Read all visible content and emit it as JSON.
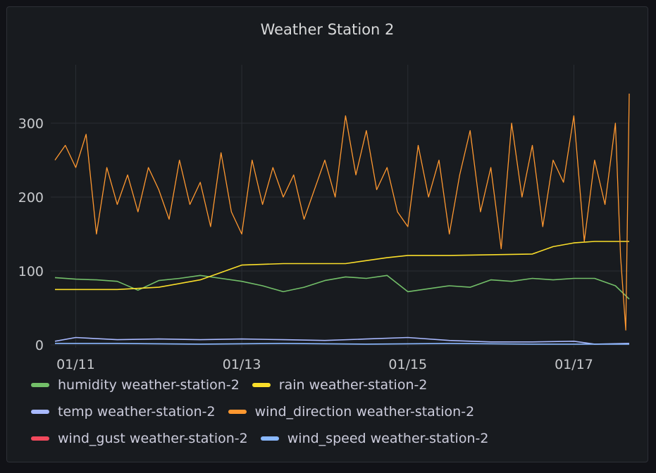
{
  "panel": {
    "title": "Weather Station 2"
  },
  "chart_data": {
    "type": "line",
    "title": "Weather Station 2",
    "xlabel": "",
    "ylabel": "",
    "x_range": [
      "2023-01-10 18:00",
      "2023-01-17 16:00"
    ],
    "x_ticks": [
      "01/11",
      "01/13",
      "01/15",
      "01/17"
    ],
    "y_ticks": [
      0,
      100,
      200,
      300
    ],
    "ylim": [
      0,
      380
    ],
    "grid": true,
    "legend_position": "bottom",
    "series": [
      {
        "name": "humidity weather-station-2",
        "color": "#73bf69",
        "x": [
          "01/10 18:00",
          "01/11 00:00",
          "01/11 06:00",
          "01/11 12:00",
          "01/11 18:00",
          "01/12 00:00",
          "01/12 06:00",
          "01/12 12:00",
          "01/12 18:00",
          "01/13 00:00",
          "01/13 06:00",
          "01/13 12:00",
          "01/13 18:00",
          "01/14 00:00",
          "01/14 06:00",
          "01/14 12:00",
          "01/14 18:00",
          "01/15 00:00",
          "01/15 06:00",
          "01/15 12:00",
          "01/15 18:00",
          "01/16 00:00",
          "01/16 06:00",
          "01/16 12:00",
          "01/16 18:00",
          "01/17 00:00",
          "01/17 06:00",
          "01/17 12:00",
          "01/17 16:00"
        ],
        "values": [
          91,
          89,
          88,
          86,
          74,
          87,
          90,
          94,
          90,
          86,
          80,
          72,
          78,
          87,
          92,
          90,
          94,
          72,
          76,
          80,
          78,
          88,
          86,
          90,
          88,
          90,
          90,
          80,
          62
        ]
      },
      {
        "name": "rain weather-station-2",
        "color": "#fade2a",
        "x": [
          "01/10 18:00",
          "01/11 12:00",
          "01/12 00:00",
          "01/12 12:00",
          "01/12 18:00",
          "01/13 00:00",
          "01/13 12:00",
          "01/14 00:00",
          "01/14 06:00",
          "01/14 18:00",
          "01/15 00:00",
          "01/15 12:00",
          "01/16 00:00",
          "01/16 12:00",
          "01/16 18:00",
          "01/17 00:00",
          "01/17 06:00",
          "01/17 16:00"
        ],
        "values": [
          75,
          75,
          78,
          88,
          98,
          108,
          110,
          110,
          110,
          118,
          121,
          121,
          122,
          123,
          133,
          138,
          140,
          140
        ]
      },
      {
        "name": "temp weather-station-2",
        "color": "#a8b9ff",
        "x": [
          "01/10 18:00",
          "01/11 00:00",
          "01/11 12:00",
          "01/12 00:00",
          "01/12 12:00",
          "01/13 00:00",
          "01/13 12:00",
          "01/14 00:00",
          "01/14 12:00",
          "01/15 00:00",
          "01/15 12:00",
          "01/16 00:00",
          "01/16 12:00",
          "01/17 00:00",
          "01/17 06:00",
          "01/17 16:00"
        ],
        "values": [
          5,
          10,
          7,
          8,
          7,
          8,
          7,
          6,
          8,
          10,
          6,
          4,
          4,
          5,
          1,
          2
        ]
      },
      {
        "name": "wind_direction weather-station-2",
        "color": "#ff9830",
        "x": [
          "01/10 18:00",
          "01/10 21:00",
          "01/11 00:00",
          "01/11 03:00",
          "01/11 06:00",
          "01/11 09:00",
          "01/11 12:00",
          "01/11 15:00",
          "01/11 18:00",
          "01/11 21:00",
          "01/12 00:00",
          "01/12 03:00",
          "01/12 06:00",
          "01/12 09:00",
          "01/12 12:00",
          "01/12 15:00",
          "01/12 18:00",
          "01/12 21:00",
          "01/13 00:00",
          "01/13 03:00",
          "01/13 06:00",
          "01/13 09:00",
          "01/13 12:00",
          "01/13 15:00",
          "01/13 18:00",
          "01/13 21:00",
          "01/14 00:00",
          "01/14 03:00",
          "01/14 06:00",
          "01/14 09:00",
          "01/14 12:00",
          "01/14 15:00",
          "01/14 18:00",
          "01/14 21:00",
          "01/15 00:00",
          "01/15 03:00",
          "01/15 06:00",
          "01/15 09:00",
          "01/15 12:00",
          "01/15 15:00",
          "01/15 18:00",
          "01/15 21:00",
          "01/16 00:00",
          "01/16 03:00",
          "01/16 06:00",
          "01/16 09:00",
          "01/16 12:00",
          "01/16 15:00",
          "01/16 18:00",
          "01/16 21:00",
          "01/17 00:00",
          "01/17 03:00",
          "01/17 06:00",
          "01/17 09:00",
          "01/17 12:00",
          "01/17 13:30",
          "01/17 15:00",
          "01/17 16:00"
        ],
        "values": [
          250,
          270,
          240,
          285,
          150,
          240,
          190,
          230,
          180,
          240,
          210,
          170,
          250,
          190,
          220,
          160,
          260,
          180,
          150,
          250,
          190,
          240,
          200,
          230,
          170,
          210,
          250,
          200,
          310,
          230,
          290,
          210,
          240,
          180,
          160,
          270,
          200,
          250,
          150,
          230,
          290,
          180,
          240,
          130,
          300,
          200,
          270,
          160,
          250,
          220,
          310,
          140,
          250,
          190,
          300,
          120,
          20,
          340
        ]
      },
      {
        "name": "wind_gust weather-station-2",
        "color": "#f2495c",
        "x": [],
        "values": []
      },
      {
        "name": "wind_speed weather-station-2",
        "color": "#8ab8ff",
        "x": [
          "01/10 18:00",
          "01/11 12:00",
          "01/12 12:00",
          "01/13 12:00",
          "01/14 12:00",
          "01/15 12:00",
          "01/16 12:00",
          "01/17 00:00",
          "01/17 16:00"
        ],
        "values": [
          2,
          2,
          1,
          2,
          1,
          2,
          1,
          1,
          1
        ]
      }
    ]
  }
}
